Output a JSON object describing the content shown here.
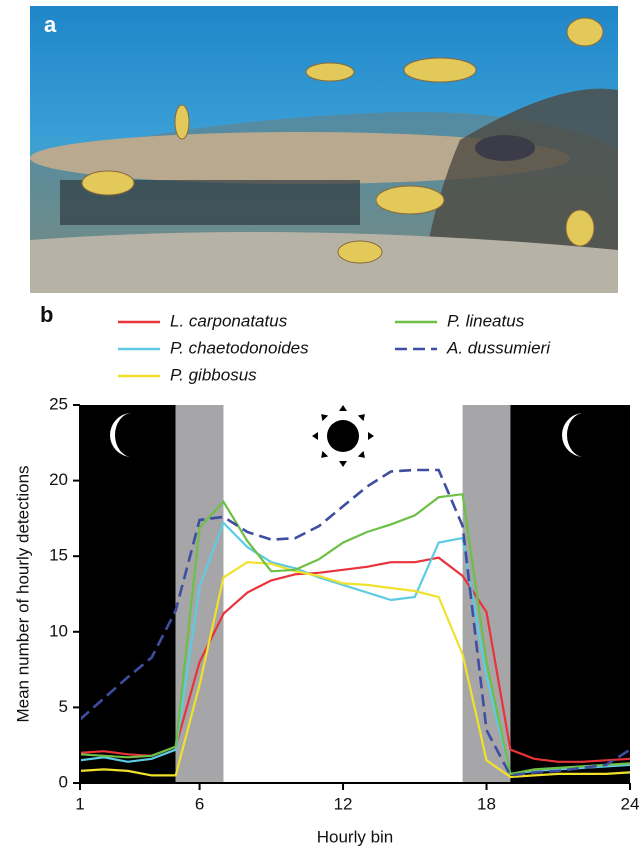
{
  "photo": {
    "label": "a"
  },
  "chart_data": {
    "type": "line",
    "label": "b",
    "xlabel": "Hourly bin",
    "ylabel": "Mean number of hourly detections",
    "x": [
      1,
      2,
      3,
      4,
      5,
      6,
      7,
      8,
      9,
      10,
      11,
      12,
      13,
      14,
      15,
      16,
      17,
      18,
      19,
      20,
      21,
      22,
      23,
      24
    ],
    "xlim": [
      1,
      24
    ],
    "xticks": [
      1,
      6,
      12,
      18,
      24
    ],
    "ylim": [
      0,
      25
    ],
    "yticks": [
      0,
      5,
      10,
      15,
      20,
      25
    ],
    "shading": [
      {
        "from": 1,
        "to": 5,
        "color": "#000000"
      },
      {
        "from": 5,
        "to": 7,
        "color": "#a6a6a8"
      },
      {
        "from": 17,
        "to": 19,
        "color": "#a6a6a8"
      },
      {
        "from": 19,
        "to": 24,
        "color": "#000000"
      }
    ],
    "series": [
      {
        "name": "L. carponatatus",
        "color": "#e8333b",
        "style": "solid",
        "values": [
          2.0,
          2.1,
          1.9,
          1.8,
          2.4,
          8.0,
          11.2,
          12.6,
          13.4,
          13.8,
          13.9,
          14.1,
          14.3,
          14.6,
          14.6,
          14.9,
          13.7,
          11.3,
          2.2,
          1.6,
          1.4,
          1.4,
          1.5,
          1.6
        ]
      },
      {
        "name": "P. chaetodonoides",
        "color": "#5ccbe3",
        "style": "solid",
        "values": [
          1.5,
          1.7,
          1.4,
          1.6,
          2.2,
          13.0,
          17.2,
          15.6,
          14.6,
          14.2,
          13.6,
          13.1,
          12.6,
          12.1,
          12.3,
          15.9,
          16.2,
          7.0,
          0.6,
          0.8,
          0.9,
          1.0,
          1.1,
          1.2
        ]
      },
      {
        "name": "P. gibbosus",
        "color": "#f0e12c",
        "style": "solid",
        "values": [
          0.8,
          0.9,
          0.8,
          0.5,
          0.5,
          6.5,
          13.6,
          14.6,
          14.5,
          14.0,
          13.7,
          13.2,
          13.1,
          12.9,
          12.7,
          12.3,
          8.5,
          1.5,
          0.4,
          0.5,
          0.6,
          0.6,
          0.6,
          0.7
        ]
      },
      {
        "name": "P. lineatus",
        "color": "#6dbf45",
        "style": "solid",
        "values": [
          1.9,
          1.8,
          1.7,
          1.8,
          2.4,
          16.9,
          18.6,
          16.0,
          14.0,
          14.1,
          14.8,
          15.9,
          16.6,
          17.1,
          17.7,
          18.9,
          19.1,
          8.0,
          0.6,
          0.9,
          1.0,
          1.1,
          1.2,
          1.3
        ]
      },
      {
        "name": "A. dussumieri",
        "color": "#3f4ea0",
        "style": "dashed",
        "values": [
          4.2,
          5.6,
          7.0,
          8.3,
          11.4,
          17.4,
          17.6,
          16.6,
          16.1,
          16.2,
          17.0,
          18.3,
          19.6,
          20.6,
          20.7,
          20.7,
          17.0,
          3.5,
          0.5,
          0.7,
          0.8,
          1.0,
          1.2,
          2.2
        ]
      }
    ]
  }
}
